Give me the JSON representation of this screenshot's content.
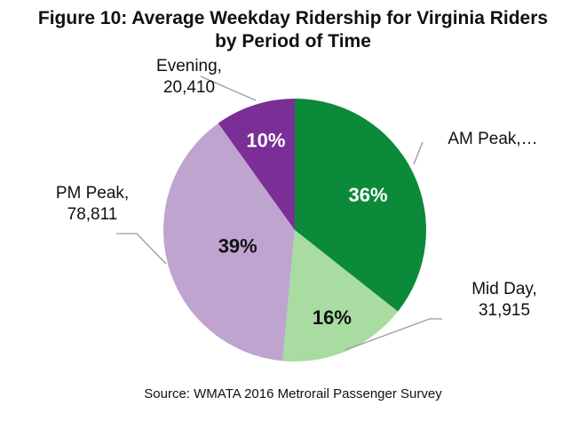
{
  "chart_data": {
    "type": "pie",
    "title_lines": [
      "Figure 10: Average Weekday Ridership for Virginia Riders",
      "by Period of Time"
    ],
    "source": "Source: WMATA 2016 Metrorail Passenger Survey",
    "slices": [
      {
        "name": "AM Peak",
        "label_lines": [
          "AM Peak,…"
        ],
        "percent": 36,
        "percent_label": "36%",
        "value": null,
        "color": "#0b8a3a",
        "pct_color": "#ffffff"
      },
      {
        "name": "Mid Day",
        "label_lines": [
          "Mid Day,",
          "31,915"
        ],
        "percent": 16,
        "percent_label": "16%",
        "value": 31915,
        "color": "#a8dca0",
        "pct_color": "#111111"
      },
      {
        "name": "PM Peak",
        "label_lines": [
          "PM Peak,",
          "78,811"
        ],
        "percent": 39,
        "percent_label": "39%",
        "value": 78811,
        "color": "#c0a4d0",
        "pct_color": "#111111"
      },
      {
        "name": "Evening",
        "label_lines": [
          "Evening,",
          "20,410"
        ],
        "percent": 10,
        "percent_label": "10%",
        "value": 20410,
        "color": "#7a2e96",
        "pct_color": "#ffffff"
      }
    ],
    "start": "12 o'clock",
    "direction": "clockwise"
  }
}
